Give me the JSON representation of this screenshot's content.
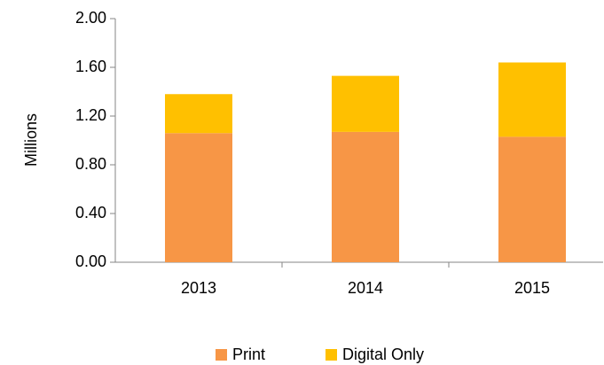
{
  "chart_data": {
    "type": "stacked_bar",
    "y_label": "Millions",
    "categories": [
      "2013",
      "2014",
      "2015"
    ],
    "series": [
      {
        "name": "Print",
        "color": "#F79646",
        "values": [
          1.06,
          1.07,
          1.03
        ]
      },
      {
        "name": "Digital Only",
        "color": "#FFC000",
        "values": [
          0.32,
          0.46,
          0.61
        ]
      }
    ],
    "ylim": [
      0,
      2
    ],
    "yticks": [
      {
        "value": 0,
        "label": "0.00"
      },
      {
        "value": 0.4,
        "label": "0.40"
      },
      {
        "value": 0.8,
        "label": "0.80"
      },
      {
        "value": 1.2,
        "label": "1.20"
      },
      {
        "value": 1.6,
        "label": "1.60"
      },
      {
        "value": 2,
        "label": "2.00"
      }
    ],
    "legend": "bottom"
  }
}
